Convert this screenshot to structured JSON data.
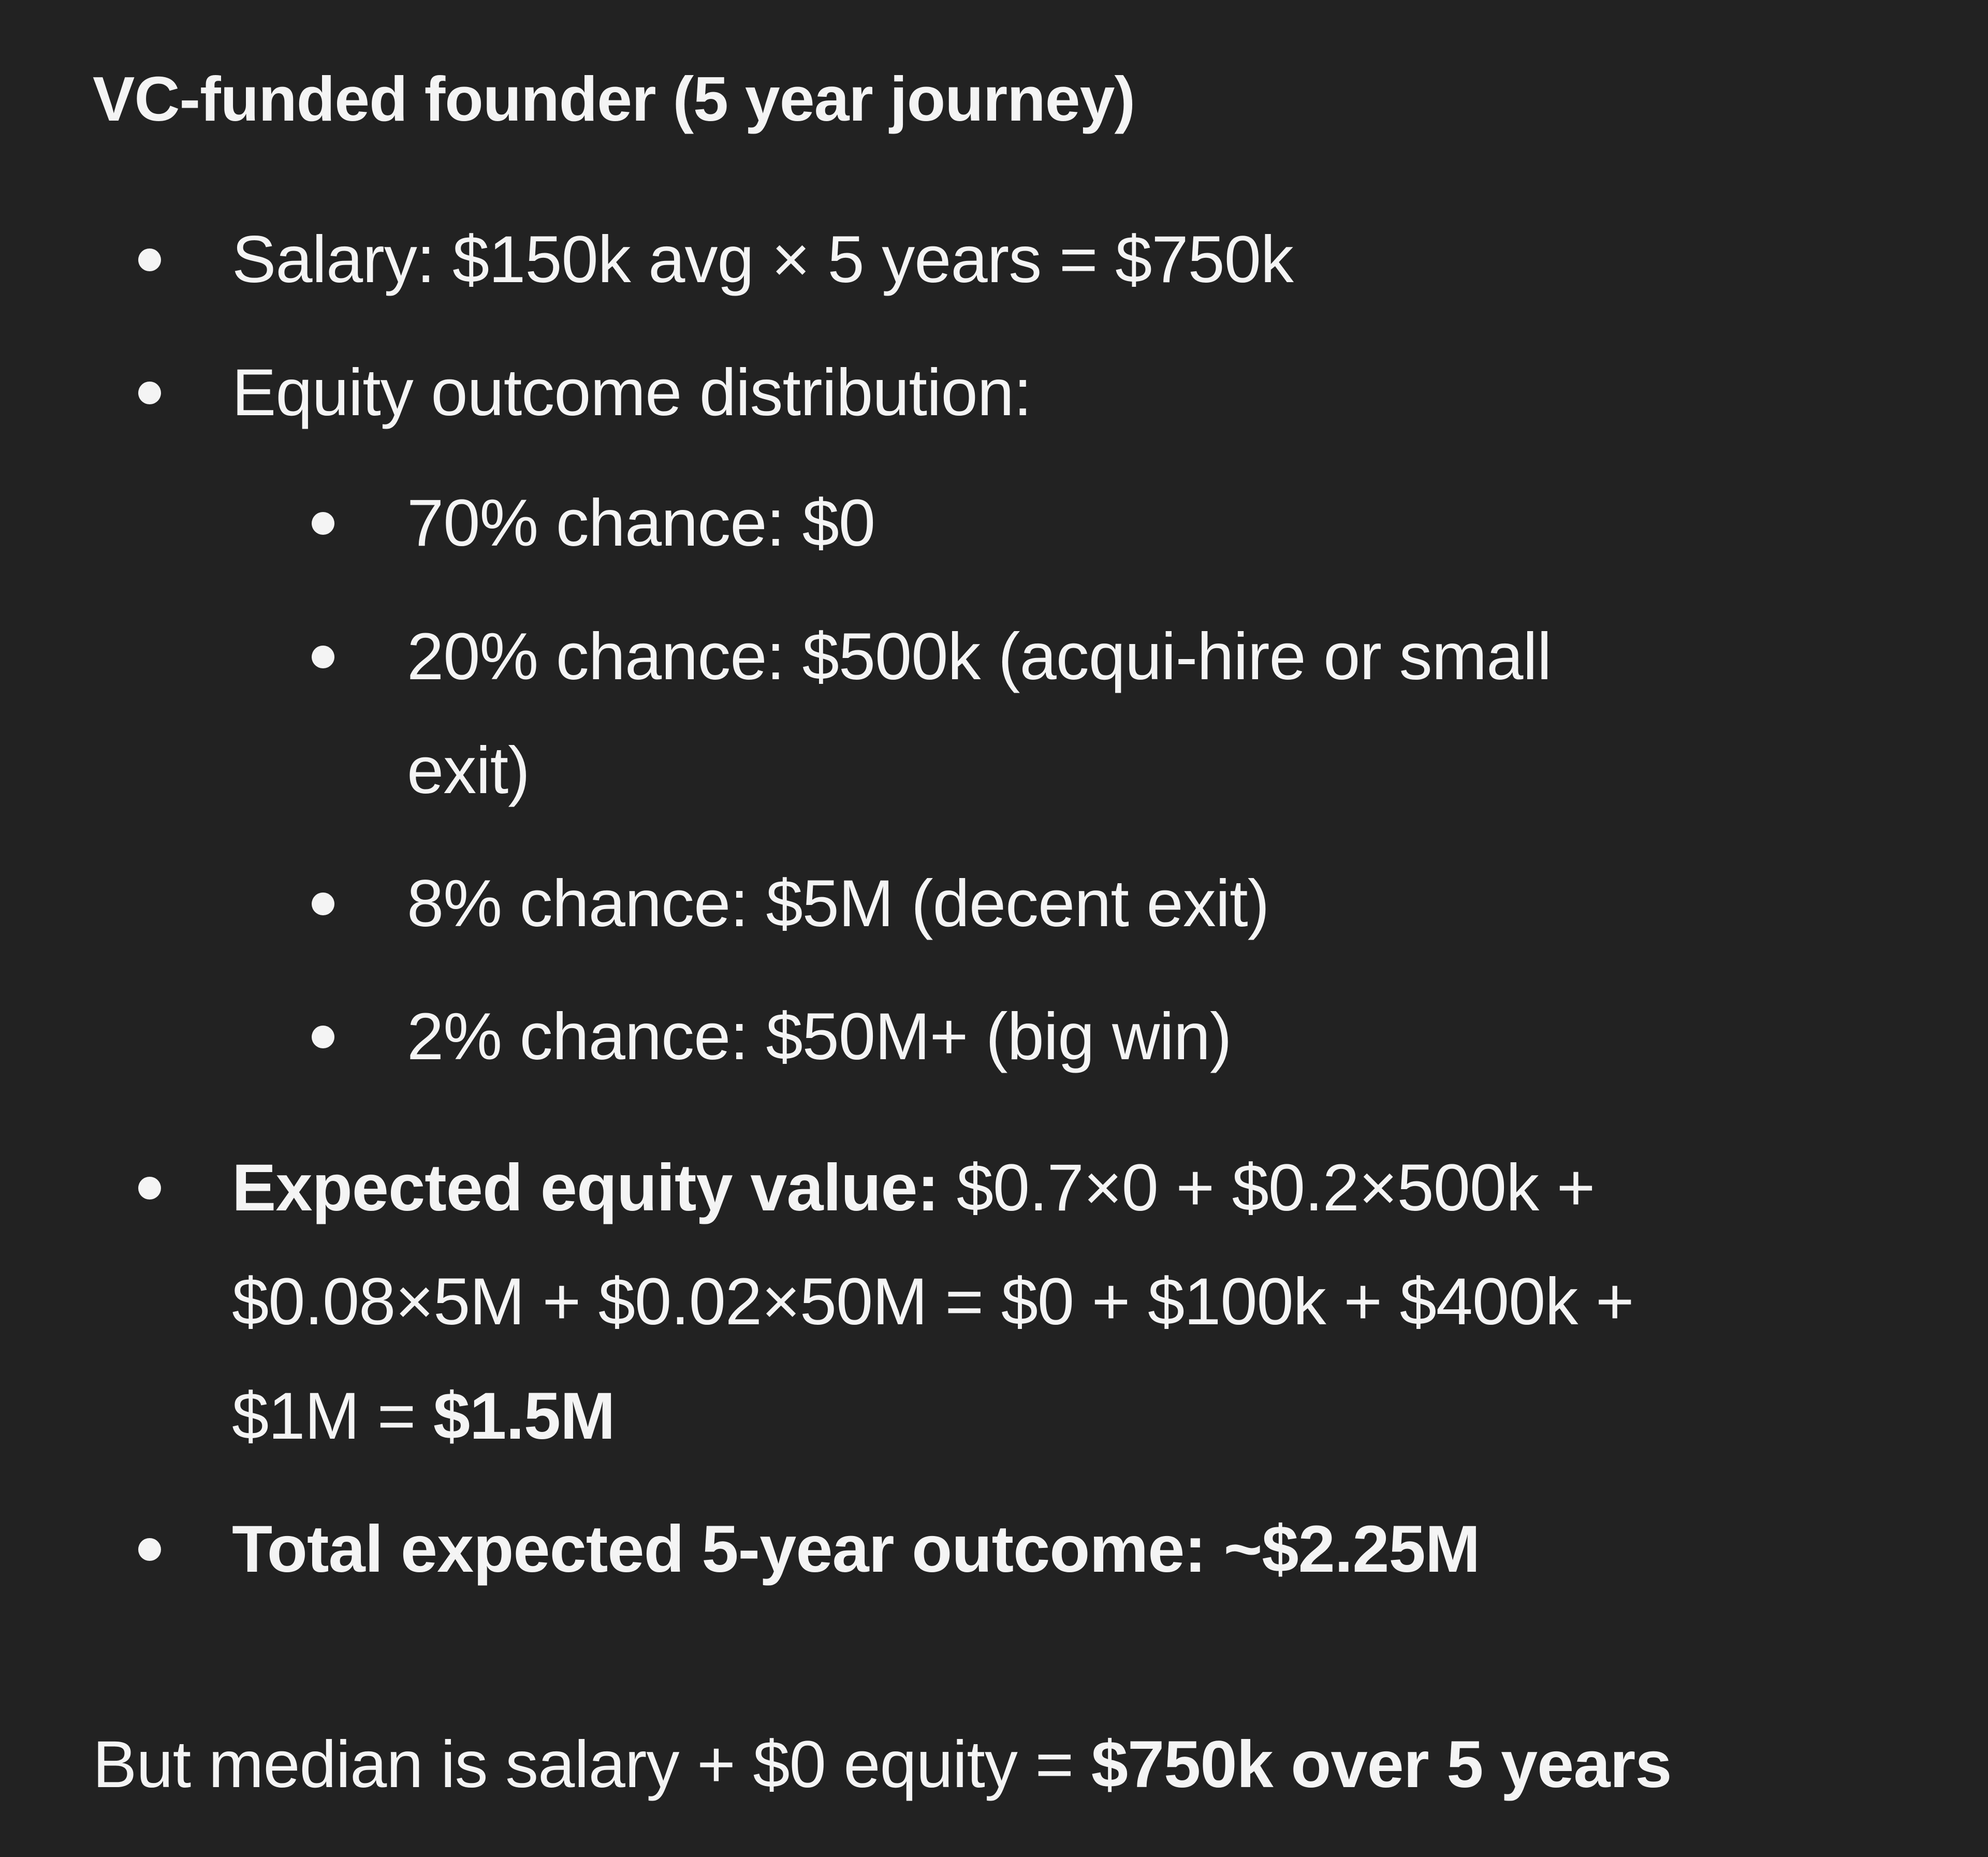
{
  "colors": {
    "background": "#222222",
    "text": "#f4f4f4"
  },
  "title": "VC-funded founder (5 year journey)",
  "items": [
    {
      "text": "Salary: $150k avg × 5 years = $750k"
    },
    {
      "text": "Equity outcome distribution:",
      "subitems": [
        {
          "text": "70% chance: $0"
        },
        {
          "line1": "20% chance: $500k (acqui-hire or small",
          "line2": "exit)"
        },
        {
          "text": "8% chance: $5M (decent exit)"
        },
        {
          "text": "2% chance: $50M+ (big win)"
        }
      ]
    },
    {
      "label": "Expected equity value:",
      "line1": " $0.7×0 + $0.2×500k +",
      "line2": "$0.08×5M + $0.02×50M = $0 + $100k + $400k +",
      "line3": "$1M = ",
      "result": "$1.5M"
    },
    {
      "text": "Total expected 5-year outcome: ~$2.25M"
    }
  ],
  "conclusion": {
    "text": "But median is salary + $0 equity = ",
    "emphasis": "$750k over 5 years"
  }
}
